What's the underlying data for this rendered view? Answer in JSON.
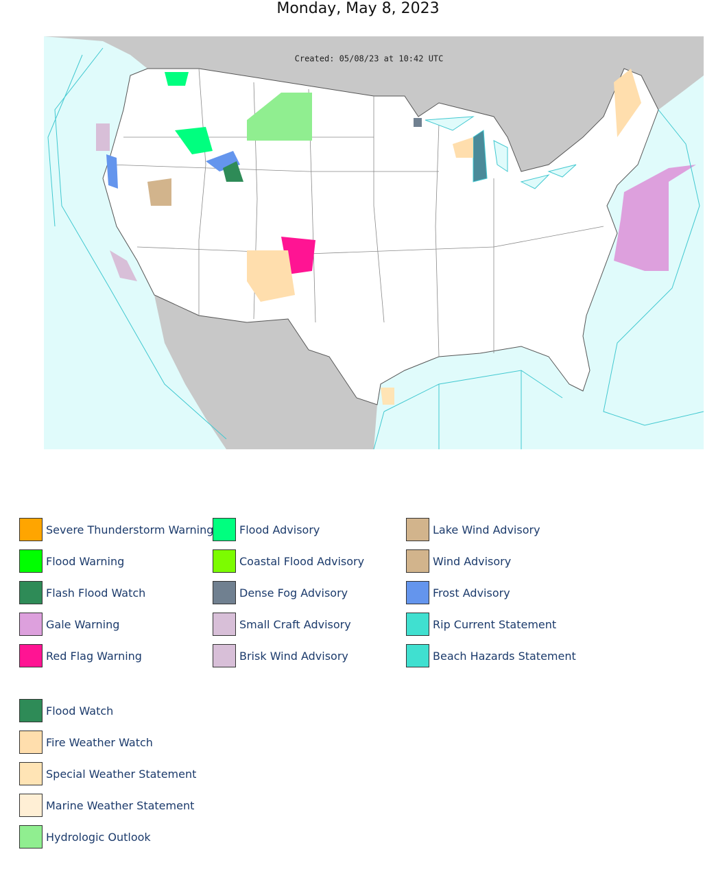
{
  "header": {
    "title": "Monday, May 8, 2023"
  },
  "map": {
    "created": "Created: 05/08/23 at 10:42 UTC"
  },
  "legend": {
    "groups": [
      [
        {
          "label": "Severe Thunderstorm Warning",
          "color": "#FFA500"
        },
        {
          "label": "Flood Warning",
          "color": "#00FF00"
        },
        {
          "label": "Flash Flood Watch",
          "color": "#2E8B57"
        },
        {
          "label": "Gale Warning",
          "color": "#DDA0DD"
        },
        {
          "label": "Red Flag Warning",
          "color": "#FF1493"
        },
        {
          "label": "Flood Advisory",
          "color": "#00FF7F"
        },
        {
          "label": "Coastal Flood Advisory",
          "color": "#7CFC00"
        },
        {
          "label": "Dense Fog Advisory",
          "color": "#708090"
        },
        {
          "label": "Small Craft Advisory",
          "color": "#D8BFD8"
        },
        {
          "label": "Brisk Wind Advisory",
          "color": "#D8BFD8"
        },
        {
          "label": "Lake Wind Advisory",
          "color": "#D2B48C"
        },
        {
          "label": "Wind Advisory",
          "color": "#D2B48C"
        },
        {
          "label": "Frost Advisory",
          "color": "#6495ED"
        },
        {
          "label": "Rip Current Statement",
          "color": "#40E0D0"
        },
        {
          "label": "Beach Hazards Statement",
          "color": "#40E0D0"
        }
      ],
      [
        {
          "label": "Flood Watch",
          "color": "#2E8B57"
        },
        {
          "label": "Fire Weather Watch",
          "color": "#FFDEAD"
        },
        {
          "label": "Special Weather Statement",
          "color": "#FFE4B5"
        },
        {
          "label": "Marine Weather Statement",
          "color": "#FFEFD5"
        },
        {
          "label": "Hydrologic Outlook",
          "color": "#90EE90"
        }
      ]
    ]
  }
}
